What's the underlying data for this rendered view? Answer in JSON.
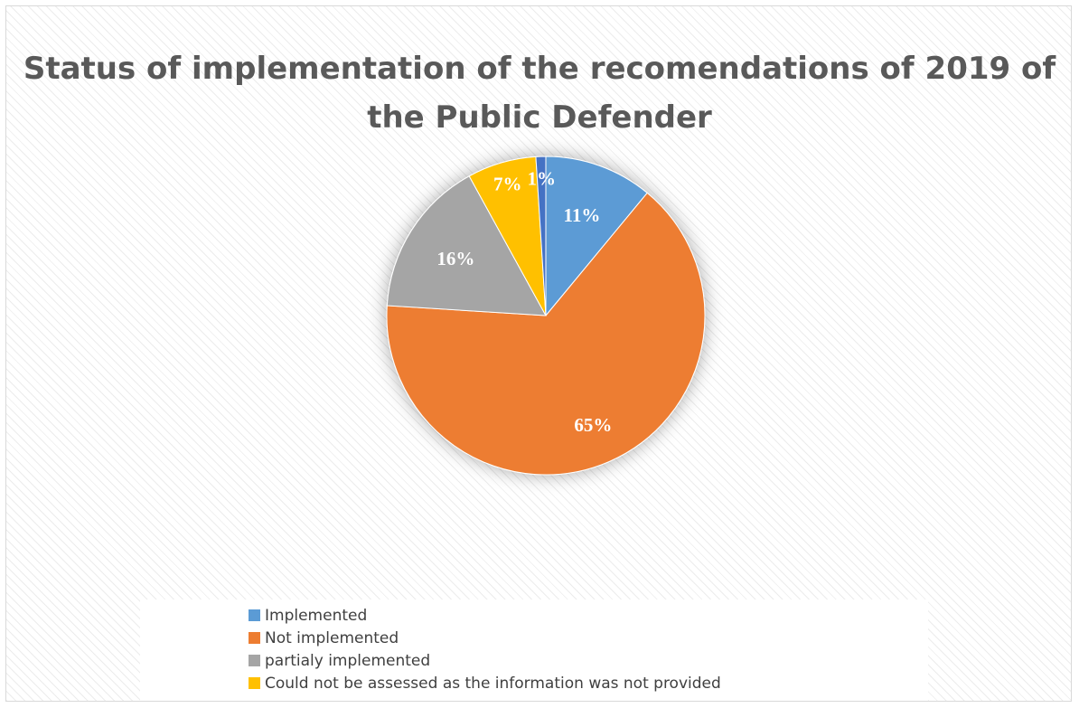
{
  "chart_data": {
    "type": "pie",
    "title": "Status of implementation of the recomendations of 2019 of the Public Defender",
    "series": [
      {
        "name": "Implemented",
        "value": 11,
        "label": "11%",
        "color": "#5b9bd5"
      },
      {
        "name": "Not implemented",
        "value": 65,
        "label": "65%",
        "color": "#ed7d31"
      },
      {
        "name": "partialy implemented",
        "value": 16,
        "label": "16%",
        "color": "#a5a5a5"
      },
      {
        "name": "Could not be assessed as the information was not provided",
        "value": 7,
        "label": "7%",
        "color": "#ffc000"
      },
      {
        "name": "",
        "value": 1,
        "label": "1%",
        "color": "#4472c4"
      }
    ],
    "legend_position": "bottom"
  }
}
